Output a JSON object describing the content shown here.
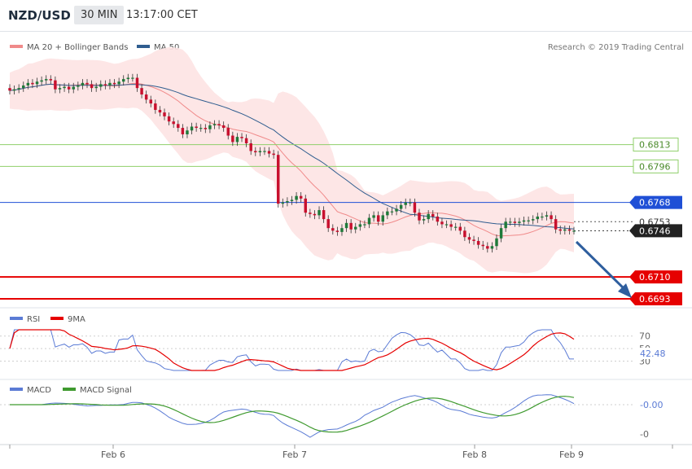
{
  "header": {
    "pair": "NZD/USD",
    "timeframe": "30 MIN",
    "time": "13:17:00 CET"
  },
  "legend": {
    "bb": "MA 20 + Bollinger Bands",
    "ma50": "MA 50",
    "credit": "Research © 2019 Trading Central",
    "rsi": "RSI",
    "rsi_ma": "9MA",
    "macd": "MACD",
    "macd_signal": "MACD Signal"
  },
  "colors": {
    "bb_band": "#fde3e3",
    "ma20": "#f08a8a",
    "ma50": "#2f5d8f",
    "green_level": "#8fcf6a",
    "red_level": "#e60000",
    "blue_level": "#1f4fd6",
    "candle_up": "#1f7a3a",
    "candle_down": "#c8102e",
    "arrow": "#2e5e9e",
    "rsi": "#5b7bd5",
    "rsi_ma": "#e60000",
    "macd": "#5b7bd5",
    "macd_signal": "#3f9a2f"
  },
  "chart_data": [
    {
      "type": "candlestick",
      "x_labels": [
        "Feb 6",
        "Feb 7",
        "Feb 8",
        "Feb 9"
      ],
      "ylim": [
        0.6686,
        0.6878
      ],
      "levels": [
        {
          "value": 0.6813,
          "label": "0.6813",
          "kind": "resistance-green"
        },
        {
          "value": 0.6796,
          "label": "0.6796",
          "kind": "resistance-green"
        },
        {
          "value": 0.6768,
          "label": "0.6768",
          "kind": "pivot-blue"
        },
        {
          "value": 0.6753,
          "label": "0.6753",
          "kind": "last-high"
        },
        {
          "value": 0.6746,
          "label": "0.6746",
          "kind": "current-price"
        },
        {
          "value": 0.671,
          "label": "0.6710",
          "kind": "support-red"
        },
        {
          "value": 0.6693,
          "label": "0.6693",
          "kind": "support-red"
        }
      ],
      "close": [
        0.6855,
        0.6856,
        0.6857,
        0.6859,
        0.6861,
        0.686,
        0.6862,
        0.6863,
        0.6864,
        0.6863,
        0.6856,
        0.6857,
        0.6858,
        0.6856,
        0.6858,
        0.6859,
        0.6861,
        0.686,
        0.6857,
        0.6858,
        0.686,
        0.6859,
        0.6861,
        0.686,
        0.6862,
        0.6864,
        0.6865,
        0.6865,
        0.6857,
        0.6852,
        0.6848,
        0.6845,
        0.684,
        0.6838,
        0.6835,
        0.6831,
        0.6829,
        0.6826,
        0.6821,
        0.6824,
        0.6827,
        0.6826,
        0.6826,
        0.6825,
        0.6828,
        0.6829,
        0.6828,
        0.6826,
        0.682,
        0.6815,
        0.6819,
        0.6818,
        0.6814,
        0.6808,
        0.6807,
        0.6808,
        0.6808,
        0.6806,
        0.6805,
        0.6767,
        0.6768,
        0.6769,
        0.677,
        0.6773,
        0.6771,
        0.676,
        0.6759,
        0.6758,
        0.6762,
        0.6755,
        0.6748,
        0.6746,
        0.6745,
        0.6748,
        0.6752,
        0.6747,
        0.6749,
        0.6751,
        0.6751,
        0.6756,
        0.6758,
        0.6753,
        0.6758,
        0.6761,
        0.6761,
        0.6763,
        0.6766,
        0.6768,
        0.6768,
        0.676,
        0.6754,
        0.6755,
        0.6759,
        0.6757,
        0.6753,
        0.6751,
        0.6751,
        0.6749,
        0.6749,
        0.6746,
        0.6741,
        0.6739,
        0.6738,
        0.6735,
        0.6734,
        0.6732,
        0.6734,
        0.674,
        0.6748,
        0.6753,
        0.6753,
        0.6752,
        0.6753,
        0.6754,
        0.6754,
        0.6755,
        0.6757,
        0.6757,
        0.6758,
        0.6755,
        0.6747,
        0.6746,
        0.6747,
        0.6746,
        0.6746
      ]
    },
    {
      "type": "line",
      "name": "RSI",
      "yticks": [
        70,
        50,
        30
      ],
      "current_value": "42.48",
      "ylim": [
        15,
        80
      ]
    },
    {
      "type": "line",
      "name": "MACD",
      "yticks": [
        "-0.00",
        "-0"
      ],
      "current_value": "-0.00"
    }
  ]
}
